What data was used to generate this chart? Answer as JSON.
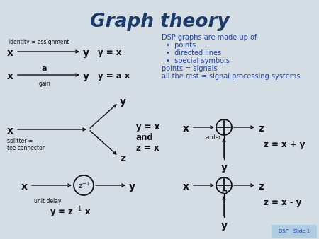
{
  "title": "Graph theory",
  "title_color": "#1a3a6b",
  "title_fontsize": 19,
  "bg_color": "#d4dce4",
  "text_color_dark": "#111111",
  "text_color_blue": "#2244aa",
  "arrow_color": "#111111",
  "slide_label": "DSP   Slide 1",
  "slide_label_bg": "#b0cce0",
  "info_text_header": "DSP graphs are made up of",
  "info_bullets": [
    "points",
    "directed lines",
    "special symbols"
  ],
  "info_footer1": "points = signals",
  "info_footer2": "all the rest = signal processing systems",
  "identity_label": "identity = assignment",
  "gain_label": "gain",
  "splitter_label": "splitter =\ntee connector",
  "adder_label": "adder",
  "unit_delay_label": "unit delay",
  "eq_yx": "y = x",
  "eq_yax": "y = a x",
  "eq_splitter": "y = x\nand\nz = x",
  "eq_adder": "z = x + y",
  "eq_delay": "y = z",
  "eq_sub": "z = x - y"
}
